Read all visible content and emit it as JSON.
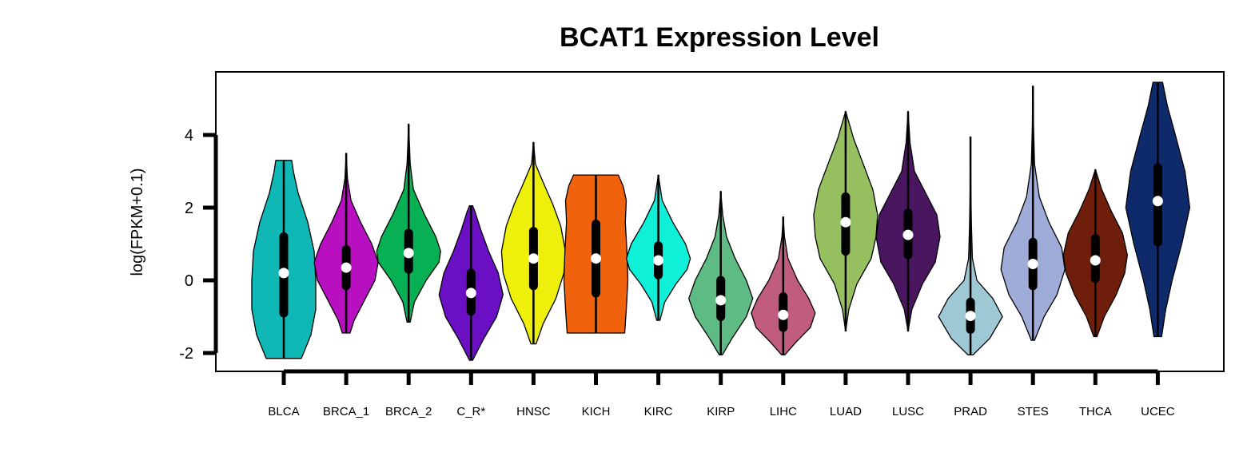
{
  "chart_data": {
    "type": "violin",
    "title": "BCAT1 Expression Level",
    "xlabel": "",
    "ylabel": "log(FPKM+0.1)",
    "ylim": [
      -2.5,
      5.75
    ],
    "yticks": [
      -2,
      0,
      2,
      4
    ],
    "ytick_labels": [
      "-2",
      "0",
      "2",
      "4"
    ],
    "grid": false,
    "categories": [
      "BLCA",
      "BRCA_1",
      "BRCA_2",
      "C_R*",
      "HNSC",
      "KICH",
      "KIRC",
      "KIRP",
      "LIHC",
      "LUAD",
      "LUSC",
      "PRAD",
      "STES",
      "THCA",
      "UCEC"
    ],
    "series": [
      {
        "category": "BLCA",
        "color": "#0fb8b5",
        "min": -2.15,
        "q1": -0.9,
        "median": 0.2,
        "q3": 1.2,
        "max": 3.3,
        "density": [
          [
            -2.15,
            0.55
          ],
          [
            -1.5,
            0.85
          ],
          [
            -0.8,
            1.0
          ],
          [
            0,
            1.0
          ],
          [
            0.8,
            0.95
          ],
          [
            1.6,
            0.75
          ],
          [
            2.4,
            0.45
          ],
          [
            3.0,
            0.3
          ],
          [
            3.3,
            0.25
          ]
        ]
      },
      {
        "category": "BRCA_1",
        "color": "#b80fc0",
        "min": -1.45,
        "q1": -0.15,
        "median": 0.35,
        "q3": 0.85,
        "max": 3.5,
        "density": [
          [
            -1.45,
            0.12
          ],
          [
            -1.1,
            0.25
          ],
          [
            -0.5,
            0.6
          ],
          [
            0,
            0.9
          ],
          [
            0.5,
            1.0
          ],
          [
            1.0,
            0.8
          ],
          [
            1.6,
            0.45
          ],
          [
            2.2,
            0.15
          ],
          [
            2.8,
            0.04
          ],
          [
            3.5,
            0.0
          ]
        ]
      },
      {
        "category": "BRCA_2",
        "color": "#08b054",
        "min": -1.15,
        "q1": 0.3,
        "median": 0.75,
        "q3": 1.3,
        "max": 4.3,
        "density": [
          [
            -1.15,
            0.05
          ],
          [
            -0.6,
            0.18
          ],
          [
            0,
            0.55
          ],
          [
            0.5,
            0.95
          ],
          [
            0.8,
            1.0
          ],
          [
            1.2,
            0.85
          ],
          [
            1.8,
            0.5
          ],
          [
            2.5,
            0.15
          ],
          [
            3.2,
            0.05
          ],
          [
            4.3,
            0.0
          ]
        ]
      },
      {
        "category": "C_R*",
        "color": "#6a0fc4",
        "min": -2.2,
        "q1": -0.85,
        "median": -0.35,
        "q3": 0.2,
        "max": 2.05,
        "density": [
          [
            -2.2,
            0.05
          ],
          [
            -1.6,
            0.4
          ],
          [
            -1.0,
            0.8
          ],
          [
            -0.4,
            1.0
          ],
          [
            0.2,
            0.85
          ],
          [
            0.8,
            0.55
          ],
          [
            1.4,
            0.3
          ],
          [
            1.9,
            0.12
          ],
          [
            2.05,
            0.05
          ]
        ]
      },
      {
        "category": "HNSC",
        "color": "#eef00c",
        "min": -1.75,
        "q1": -0.15,
        "median": 0.6,
        "q3": 1.35,
        "max": 3.8,
        "density": [
          [
            -1.75,
            0.08
          ],
          [
            -1.2,
            0.3
          ],
          [
            -0.5,
            0.7
          ],
          [
            0.2,
            0.95
          ],
          [
            0.8,
            1.0
          ],
          [
            1.5,
            0.85
          ],
          [
            2.1,
            0.6
          ],
          [
            2.7,
            0.3
          ],
          [
            3.2,
            0.06
          ],
          [
            3.8,
            0.0
          ]
        ]
      },
      {
        "category": "KICH",
        "color": "#f0620c",
        "min": -1.45,
        "q1": -0.35,
        "median": 0.6,
        "q3": 1.55,
        "max": 2.9,
        "density": [
          [
            -1.45,
            0.9
          ],
          [
            -0.8,
            0.95
          ],
          [
            0,
            1.0
          ],
          [
            0.8,
            0.97
          ],
          [
            1.6,
            0.92
          ],
          [
            2.2,
            0.95
          ],
          [
            2.6,
            0.85
          ],
          [
            2.9,
            0.7
          ]
        ]
      },
      {
        "category": "KIRC",
        "color": "#0ff0d8",
        "min": -1.1,
        "q1": 0.15,
        "median": 0.55,
        "q3": 0.95,
        "max": 2.9,
        "density": [
          [
            -1.1,
            0.05
          ],
          [
            -0.6,
            0.2
          ],
          [
            -0.1,
            0.55
          ],
          [
            0.3,
            0.9
          ],
          [
            0.6,
            1.0
          ],
          [
            1.0,
            0.85
          ],
          [
            1.6,
            0.45
          ],
          [
            2.2,
            0.12
          ],
          [
            2.9,
            0.0
          ]
        ]
      },
      {
        "category": "KIRP",
        "color": "#5dbb83",
        "min": -2.05,
        "q1": -1.0,
        "median": -0.55,
        "q3": 0.0,
        "max": 2.45,
        "density": [
          [
            -2.05,
            0.05
          ],
          [
            -1.6,
            0.35
          ],
          [
            -1.0,
            0.8
          ],
          [
            -0.5,
            1.0
          ],
          [
            0,
            0.8
          ],
          [
            0.6,
            0.45
          ],
          [
            1.2,
            0.18
          ],
          [
            1.8,
            0.06
          ],
          [
            2.45,
            0.0
          ]
        ]
      },
      {
        "category": "LIHC",
        "color": "#c05c80",
        "min": -2.05,
        "q1": -1.3,
        "median": -0.95,
        "q3": -0.45,
        "max": 1.75,
        "density": [
          [
            -2.05,
            0.05
          ],
          [
            -1.7,
            0.4
          ],
          [
            -1.3,
            0.85
          ],
          [
            -0.9,
            1.0
          ],
          [
            -0.5,
            0.8
          ],
          [
            0,
            0.45
          ],
          [
            0.6,
            0.15
          ],
          [
            1.2,
            0.04
          ],
          [
            1.75,
            0.0
          ]
        ]
      },
      {
        "category": "LUAD",
        "color": "#96c060",
        "min": -1.4,
        "q1": 0.8,
        "median": 1.6,
        "q3": 2.3,
        "max": 4.65,
        "density": [
          [
            -1.4,
            0.0
          ],
          [
            -0.8,
            0.1
          ],
          [
            -0.1,
            0.35
          ],
          [
            0.6,
            0.8
          ],
          [
            1.2,
            0.95
          ],
          [
            1.8,
            1.0
          ],
          [
            2.5,
            0.85
          ],
          [
            3.2,
            0.55
          ],
          [
            3.9,
            0.25
          ],
          [
            4.65,
            0.0
          ]
        ]
      },
      {
        "category": "LUSC",
        "color": "#4a1660",
        "min": -1.4,
        "q1": 0.7,
        "median": 1.25,
        "q3": 1.85,
        "max": 4.65,
        "density": [
          [
            -1.4,
            0.0
          ],
          [
            -0.8,
            0.12
          ],
          [
            -0.1,
            0.45
          ],
          [
            0.5,
            0.85
          ],
          [
            1.2,
            1.0
          ],
          [
            1.8,
            0.9
          ],
          [
            2.4,
            0.55
          ],
          [
            3.0,
            0.2
          ],
          [
            3.8,
            0.06
          ],
          [
            4.65,
            0.0
          ]
        ]
      },
      {
        "category": "PRAD",
        "color": "#9dc8d4",
        "min": -2.05,
        "q1": -1.35,
        "median": -0.98,
        "q3": -0.6,
        "max": 3.95,
        "density": [
          [
            -2.05,
            0.08
          ],
          [
            -1.6,
            0.6
          ],
          [
            -1.0,
            1.0
          ],
          [
            -0.5,
            0.7
          ],
          [
            0,
            0.2
          ],
          [
            0.6,
            0.06
          ],
          [
            1.5,
            0.03
          ],
          [
            2.5,
            0.01
          ],
          [
            3.95,
            0.0
          ]
        ]
      },
      {
        "category": "STES",
        "color": "#a0acd8",
        "min": -1.65,
        "q1": -0.15,
        "median": 0.45,
        "q3": 1.05,
        "max": 5.35,
        "density": [
          [
            -1.65,
            0.05
          ],
          [
            -1.0,
            0.35
          ],
          [
            -0.4,
            0.75
          ],
          [
            0.3,
            1.0
          ],
          [
            0.9,
            0.9
          ],
          [
            1.6,
            0.5
          ],
          [
            2.3,
            0.2
          ],
          [
            3.2,
            0.05
          ],
          [
            4.2,
            0.02
          ],
          [
            5.35,
            0.0
          ]
        ]
      },
      {
        "category": "THCA",
        "color": "#6e1e0a",
        "min": -1.55,
        "q1": 0.05,
        "median": 0.55,
        "q3": 1.15,
        "max": 3.05,
        "density": [
          [
            -1.55,
            0.05
          ],
          [
            -1.0,
            0.28
          ],
          [
            -0.4,
            0.65
          ],
          [
            0.2,
            0.92
          ],
          [
            0.7,
            1.0
          ],
          [
            1.3,
            0.85
          ],
          [
            1.9,
            0.5
          ],
          [
            2.5,
            0.2
          ],
          [
            3.05,
            0.0
          ]
        ]
      },
      {
        "category": "UCEC",
        "color": "#0e2a6a",
        "min": -1.55,
        "q1": 1.05,
        "median": 2.18,
        "q3": 3.1,
        "max": 5.45,
        "density": [
          [
            -1.55,
            0.12
          ],
          [
            -0.8,
            0.25
          ],
          [
            0,
            0.45
          ],
          [
            1.0,
            0.75
          ],
          [
            2.0,
            1.0
          ],
          [
            3.0,
            0.85
          ],
          [
            4.0,
            0.55
          ],
          [
            4.8,
            0.3
          ],
          [
            5.45,
            0.15
          ]
        ]
      }
    ]
  }
}
